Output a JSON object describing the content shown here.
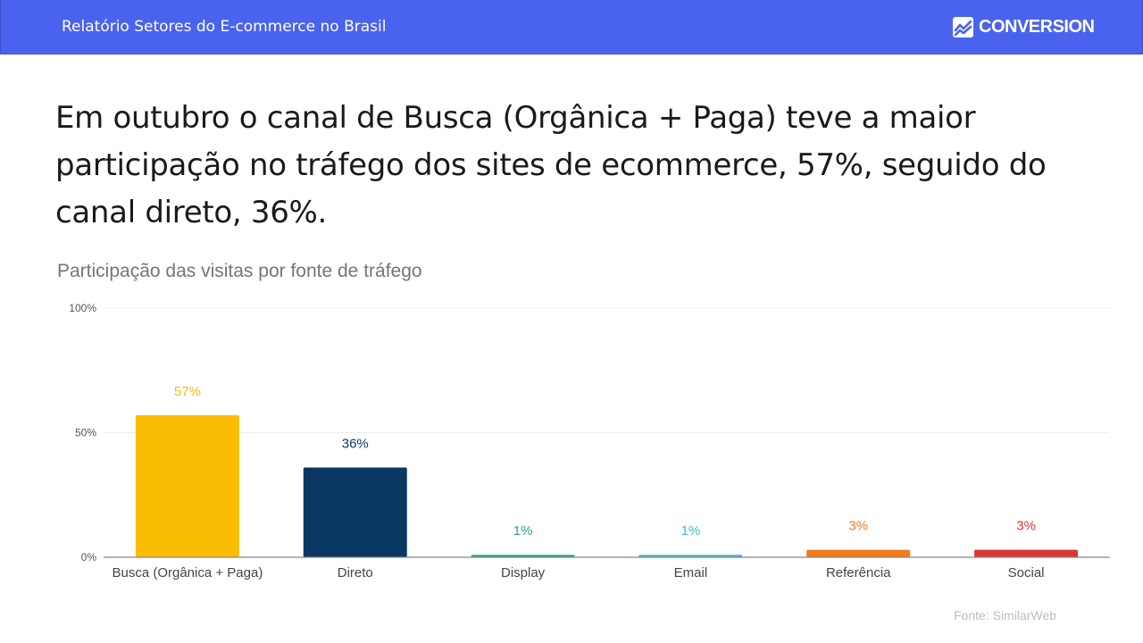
{
  "header": {
    "title": "Relatório Setores do E-commerce no Brasil",
    "logo_text": "CONVERSION"
  },
  "headline": "Em outubro o canal de Busca (Orgânica + Paga) teve a maior participação no tráfego dos sites de ecommerce, 57%, seguido do canal direto, 36%.",
  "source": "Fonte: SimilarWeb",
  "colors": {
    "header_bg": "#4a63ee",
    "busca": "#fbbc04",
    "direto": "#0b3863",
    "display": "#2ea88b",
    "email": "#4ab6c8",
    "referencia": "#f07c1f",
    "social": "#d93634"
  },
  "chart_data": {
    "type": "bar",
    "title": "Participação das visitas por fonte de tráfego",
    "categories": [
      "Busca (Orgânica + Paga)",
      "Direto",
      "Display",
      "Email",
      "Referência",
      "Social"
    ],
    "values": [
      57,
      36,
      1,
      1,
      3,
      3
    ],
    "data_labels": [
      "57%",
      "36%",
      "1%",
      "1%",
      "3%",
      "3%"
    ],
    "bar_colors": [
      "#fbbc04",
      "#0b3863",
      "#2ea88b",
      "#4ab6c8",
      "#f07c1f",
      "#d93634"
    ],
    "y_ticks": [
      0,
      50,
      100
    ],
    "y_tick_labels": [
      "0%",
      "50%",
      "100%"
    ],
    "ylim": [
      0,
      100
    ],
    "grid": true,
    "legend": "none"
  }
}
